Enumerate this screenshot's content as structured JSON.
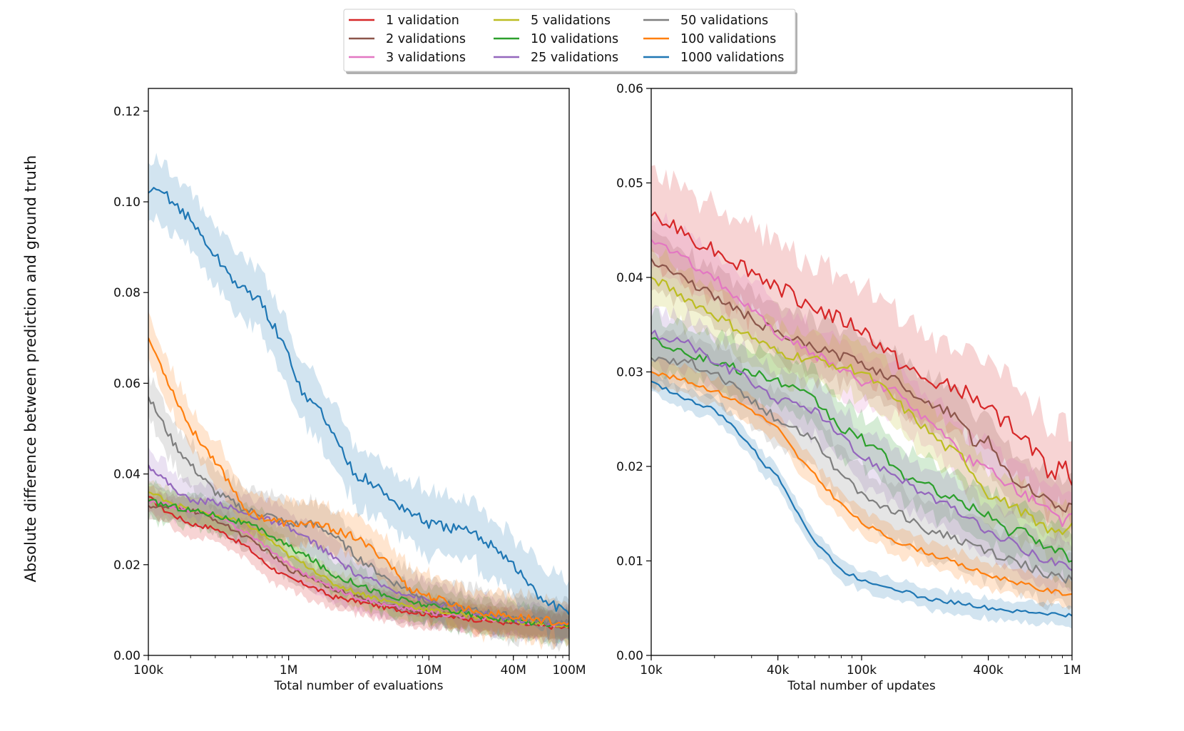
{
  "figure": {
    "ylabel": "Absolute difference between prediction and ground truth"
  },
  "legend": {
    "placement": "top-center",
    "entries": [
      {
        "label": "1 validation",
        "color": "#d62728"
      },
      {
        "label": "2 validations",
        "color": "#8c564b"
      },
      {
        "label": "3 validations",
        "color": "#e377c2"
      },
      {
        "label": "5 validations",
        "color": "#bcbd22"
      },
      {
        "label": "10 validations",
        "color": "#2ca02c"
      },
      {
        "label": "25 validations",
        "color": "#9467bd"
      },
      {
        "label": "50 validations",
        "color": "#7f7f7f"
      },
      {
        "label": "100 validations",
        "color": "#ff7f0e"
      },
      {
        "label": "1000 validations",
        "color": "#1f77b4"
      }
    ]
  },
  "chart_data": [
    {
      "type": "line",
      "xscale": "log",
      "xlabel": "Total number of evaluations",
      "xlim": [
        100000,
        100000000
      ],
      "ylim": [
        0,
        0.125
      ],
      "xticks": [
        {
          "value": 100000,
          "label": "100k"
        },
        {
          "value": 1000000,
          "label": "1M"
        },
        {
          "value": 10000000,
          "label": "10M"
        },
        {
          "value": 40000000,
          "label": "40M"
        },
        {
          "value": 100000000,
          "label": "100M"
        }
      ],
      "yticks": [
        {
          "value": 0.0,
          "label": "0.00"
        },
        {
          "value": 0.02,
          "label": "0.02"
        },
        {
          "value": 0.04,
          "label": "0.04"
        },
        {
          "value": 0.06,
          "label": "0.06"
        },
        {
          "value": 0.08,
          "label": "0.08"
        },
        {
          "value": 0.1,
          "label": "0.10"
        },
        {
          "value": 0.12,
          "label": "0.12"
        }
      ],
      "series": [
        {
          "name": "1 validation",
          "color": "#d62728",
          "x": [
            100000,
            130000,
            200000,
            300000,
            500000,
            700000,
            1000000,
            1500000,
            2000000,
            3000000,
            5000000,
            10000000,
            20000000,
            40000000,
            100000000
          ],
          "y": [
            0.035,
            0.032,
            0.029,
            0.028,
            0.024,
            0.02,
            0.017,
            0.015,
            0.013,
            0.012,
            0.0105,
            0.009,
            0.008,
            0.007,
            0.006
          ],
          "band": 0.003
        },
        {
          "name": "2 validations",
          "color": "#8c564b",
          "x": [
            100000,
            200000,
            300000,
            500000,
            700000,
            1000000,
            1500000,
            2000000,
            3000000,
            5000000,
            10000000,
            20000000,
            40000000,
            100000000
          ],
          "y": [
            0.033,
            0.032,
            0.03,
            0.026,
            0.023,
            0.019,
            0.017,
            0.015,
            0.013,
            0.011,
            0.0095,
            0.0085,
            0.0075,
            0.0065
          ],
          "band": 0.003
        },
        {
          "name": "3 validations",
          "color": "#e377c2",
          "x": [
            100000,
            200000,
            300000,
            500000,
            700000,
            1000000,
            1500000,
            2000000,
            3000000,
            5000000,
            10000000,
            20000000,
            40000000,
            100000000
          ],
          "y": [
            0.034,
            0.032,
            0.031,
            0.027,
            0.024,
            0.02,
            0.017,
            0.015,
            0.013,
            0.011,
            0.0095,
            0.0085,
            0.0075,
            0.0065
          ],
          "band": 0.003
        },
        {
          "name": "5 validations",
          "color": "#bcbd22",
          "x": [
            100000,
            200000,
            300000,
            500000,
            700000,
            1000000,
            1500000,
            2000000,
            3000000,
            5000000,
            10000000,
            20000000,
            40000000,
            100000000
          ],
          "y": [
            0.036,
            0.032,
            0.031,
            0.029,
            0.026,
            0.022,
            0.019,
            0.016,
            0.014,
            0.012,
            0.01,
            0.0088,
            0.0075,
            0.0065
          ],
          "band": 0.003
        },
        {
          "name": "10 validations",
          "color": "#2ca02c",
          "x": [
            100000,
            200000,
            300000,
            500000,
            700000,
            1000000,
            1500000,
            2000000,
            3000000,
            5000000,
            10000000,
            20000000,
            40000000,
            100000000
          ],
          "y": [
            0.034,
            0.032,
            0.031,
            0.029,
            0.027,
            0.024,
            0.021,
            0.018,
            0.016,
            0.013,
            0.011,
            0.009,
            0.0078,
            0.0065
          ],
          "band": 0.004
        },
        {
          "name": "25 validations",
          "color": "#9467bd",
          "x": [
            100000,
            150000,
            200000,
            300000,
            500000,
            700000,
            1000000,
            1500000,
            2000000,
            3000000,
            5000000,
            10000000,
            20000000,
            40000000,
            100000000
          ],
          "y": [
            0.042,
            0.037,
            0.034,
            0.034,
            0.031,
            0.03,
            0.028,
            0.025,
            0.022,
            0.018,
            0.015,
            0.012,
            0.0095,
            0.008,
            0.0068
          ],
          "band": 0.004
        },
        {
          "name": "50 validations",
          "color": "#7f7f7f",
          "x": [
            100000,
            150000,
            200000,
            300000,
            500000,
            700000,
            1000000,
            1500000,
            2000000,
            3000000,
            5000000,
            10000000,
            20000000,
            40000000,
            100000000
          ],
          "y": [
            0.057,
            0.047,
            0.042,
            0.036,
            0.032,
            0.031,
            0.029,
            0.029,
            0.027,
            0.022,
            0.017,
            0.012,
            0.01,
            0.0085,
            0.007
          ],
          "band": 0.005
        },
        {
          "name": "100 validations",
          "color": "#ff7f0e",
          "x": [
            100000,
            150000,
            200000,
            300000,
            500000,
            700000,
            1000000,
            1500000,
            2000000,
            3000000,
            5000000,
            7000000,
            10000000,
            20000000,
            40000000,
            100000000
          ],
          "y": [
            0.07,
            0.058,
            0.05,
            0.043,
            0.032,
            0.03,
            0.029,
            0.029,
            0.028,
            0.026,
            0.021,
            0.015,
            0.013,
            0.01,
            0.0085,
            0.0072
          ],
          "band": 0.005
        },
        {
          "name": "1000 validations",
          "color": "#1f77b4",
          "x": [
            100000,
            130000,
            200000,
            300000,
            450000,
            600000,
            800000,
            1000000,
            1300000,
            1700000,
            2300000,
            3000000,
            4000000,
            5000000,
            7000000,
            10000000,
            15000000,
            20000000,
            30000000,
            40000000,
            60000000,
            100000000
          ],
          "y": [
            0.102,
            0.102,
            0.096,
            0.088,
            0.081,
            0.079,
            0.072,
            0.066,
            0.057,
            0.054,
            0.046,
            0.04,
            0.038,
            0.035,
            0.032,
            0.029,
            0.028,
            0.027,
            0.024,
            0.02,
            0.013,
            0.009
          ],
          "band": 0.007
        }
      ]
    },
    {
      "type": "line",
      "xscale": "log",
      "xlabel": "Total number of updates",
      "xlim": [
        10000,
        1000000
      ],
      "ylim": [
        0,
        0.06
      ],
      "xticks": [
        {
          "value": 10000,
          "label": "10k"
        },
        {
          "value": 40000,
          "label": "40k"
        },
        {
          "value": 100000,
          "label": "100k"
        },
        {
          "value": 400000,
          "label": "400k"
        },
        {
          "value": 1000000,
          "label": "1M"
        }
      ],
      "yticks": [
        {
          "value": 0.0,
          "label": "0.00"
        },
        {
          "value": 0.01,
          "label": "0.01"
        },
        {
          "value": 0.02,
          "label": "0.02"
        },
        {
          "value": 0.03,
          "label": "0.03"
        },
        {
          "value": 0.04,
          "label": "0.04"
        },
        {
          "value": 0.05,
          "label": "0.05"
        },
        {
          "value": 0.06,
          "label": "0.06"
        }
      ],
      "series": [
        {
          "name": "1 validation",
          "color": "#d62728",
          "x": [
            10000,
            20000,
            40000,
            70000,
            100000,
            150000,
            200000,
            300000,
            400000,
            500000,
            600000,
            700000,
            800000,
            900000,
            1000000
          ],
          "y": [
            0.0465,
            0.043,
            0.039,
            0.036,
            0.0345,
            0.031,
            0.029,
            0.028,
            0.026,
            0.0245,
            0.023,
            0.021,
            0.019,
            0.0205,
            0.018
          ],
          "band": 0.005
        },
        {
          "name": "2 validations",
          "color": "#8c564b",
          "x": [
            10000,
            20000,
            40000,
            70000,
            100000,
            150000,
            200000,
            300000,
            350000,
            400000,
            500000,
            600000,
            700000,
            800000,
            900000,
            1000000
          ],
          "y": [
            0.042,
            0.038,
            0.034,
            0.032,
            0.031,
            0.029,
            0.027,
            0.025,
            0.022,
            0.023,
            0.019,
            0.018,
            0.017,
            0.016,
            0.015,
            0.016
          ],
          "band": 0.003
        },
        {
          "name": "3 validations",
          "color": "#e377c2",
          "x": [
            10000,
            20000,
            40000,
            70000,
            100000,
            150000,
            200000,
            250000,
            300000,
            400000,
            500000,
            600000,
            700000,
            800000,
            900000,
            1000000
          ],
          "y": [
            0.044,
            0.04,
            0.034,
            0.031,
            0.029,
            0.028,
            0.025,
            0.023,
            0.021,
            0.02,
            0.018,
            0.017,
            0.016,
            0.015,
            0.014,
            0.015
          ],
          "band": 0.003
        },
        {
          "name": "5 validations",
          "color": "#bcbd22",
          "x": [
            10000,
            20000,
            40000,
            70000,
            100000,
            130000,
            160000,
            200000,
            250000,
            300000,
            400000,
            500000,
            600000,
            700000,
            800000,
            900000,
            1000000
          ],
          "y": [
            0.04,
            0.036,
            0.032,
            0.031,
            0.03,
            0.028,
            0.026,
            0.024,
            0.022,
            0.021,
            0.017,
            0.016,
            0.015,
            0.014,
            0.013,
            0.013,
            0.014
          ],
          "band": 0.003
        },
        {
          "name": "10 validations",
          "color": "#2ca02c",
          "x": [
            10000,
            20000,
            40000,
            60000,
            80000,
            100000,
            130000,
            160000,
            200000,
            250000,
            300000,
            400000,
            500000,
            600000,
            700000,
            800000,
            900000,
            1000000
          ],
          "y": [
            0.0335,
            0.031,
            0.029,
            0.027,
            0.024,
            0.023,
            0.021,
            0.019,
            0.018,
            0.017,
            0.016,
            0.015,
            0.013,
            0.013,
            0.012,
            0.011,
            0.011,
            0.01
          ],
          "band": 0.003
        },
        {
          "name": "25 validations",
          "color": "#9467bd",
          "x": [
            10000,
            15000,
            20000,
            30000,
            40000,
            60000,
            80000,
            100000,
            150000,
            200000,
            300000,
            400000,
            500000,
            600000,
            700000,
            800000,
            900000,
            1000000
          ],
          "y": [
            0.034,
            0.033,
            0.031,
            0.029,
            0.027,
            0.026,
            0.023,
            0.021,
            0.019,
            0.017,
            0.015,
            0.013,
            0.012,
            0.011,
            0.0105,
            0.01,
            0.0095,
            0.009
          ],
          "band": 0.003
        },
        {
          "name": "50 validations",
          "color": "#7f7f7f",
          "x": [
            10000,
            15000,
            20000,
            30000,
            40000,
            60000,
            80000,
            100000,
            150000,
            200000,
            300000,
            400000,
            500000,
            600000,
            700000,
            800000,
            900000,
            1000000
          ],
          "y": [
            0.0315,
            0.031,
            0.03,
            0.027,
            0.025,
            0.023,
            0.019,
            0.017,
            0.015,
            0.0135,
            0.012,
            0.011,
            0.01,
            0.0095,
            0.009,
            0.0085,
            0.008,
            0.008
          ],
          "band": 0.003
        },
        {
          "name": "100 validations",
          "color": "#ff7f0e",
          "x": [
            10000,
            15000,
            20000,
            25000,
            30000,
            40000,
            50000,
            60000,
            80000,
            100000,
            150000,
            200000,
            300000,
            400000,
            500000,
            600000,
            700000,
            800000,
            900000,
            1000000
          ],
          "y": [
            0.03,
            0.029,
            0.028,
            0.027,
            0.026,
            0.024,
            0.021,
            0.019,
            0.016,
            0.014,
            0.012,
            0.011,
            0.0095,
            0.0085,
            0.008,
            0.0075,
            0.007,
            0.0068,
            0.0066,
            0.0065
          ],
          "band": 0.0015
        },
        {
          "name": "1000 validations",
          "color": "#1f77b4",
          "x": [
            10000,
            15000,
            20000,
            25000,
            30000,
            35000,
            40000,
            45000,
            50000,
            60000,
            70000,
            80000,
            100000,
            150000,
            200000,
            300000,
            400000,
            500000,
            600000,
            700000,
            800000,
            900000,
            1000000
          ],
          "y": [
            0.029,
            0.027,
            0.026,
            0.024,
            0.022,
            0.02,
            0.019,
            0.017,
            0.015,
            0.012,
            0.0105,
            0.009,
            0.008,
            0.007,
            0.006,
            0.0055,
            0.005,
            0.0048,
            0.0046,
            0.0045,
            0.0044,
            0.0043,
            0.0042
          ],
          "band": 0.0012
        }
      ]
    }
  ]
}
